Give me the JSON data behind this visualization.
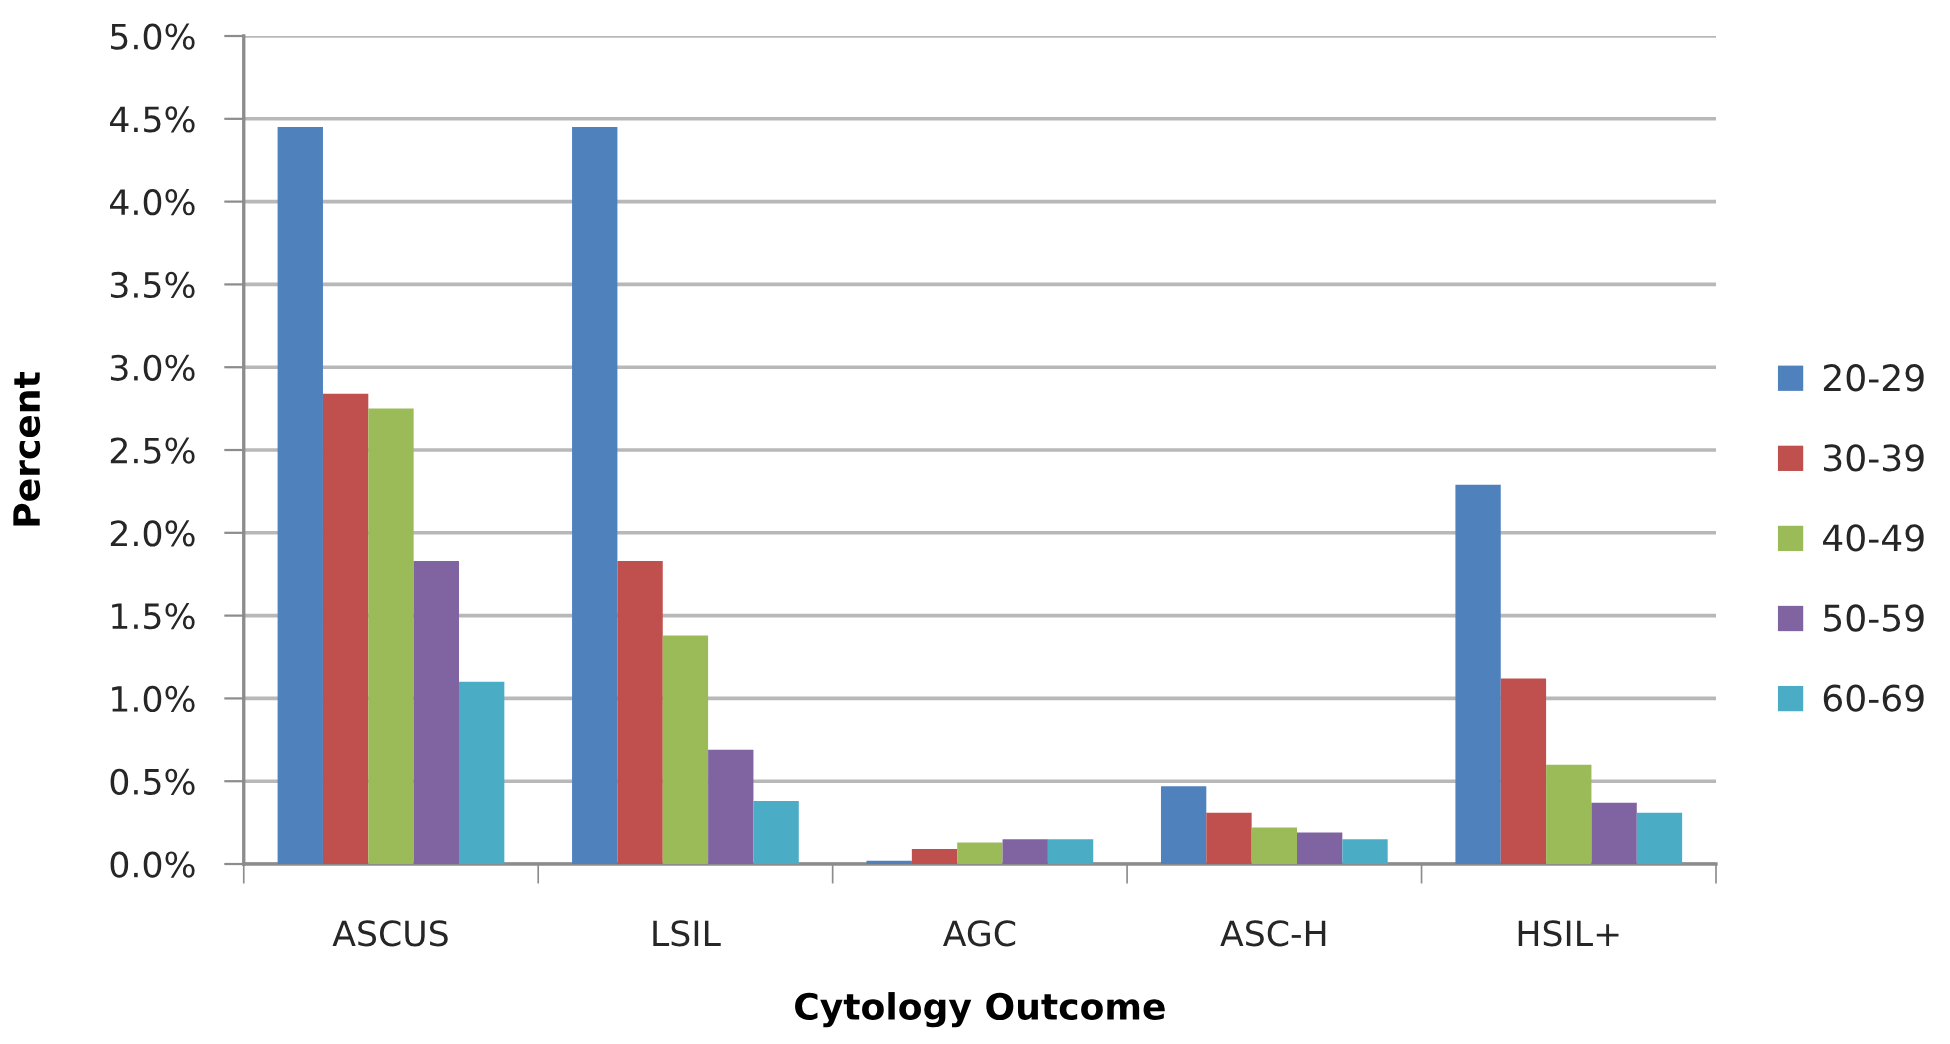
{
  "chart_data": {
    "type": "bar",
    "xlabel": "Cytology Outcome",
    "ylabel": "Percent",
    "categories": [
      "ASCUS",
      "LSIL",
      "AGC",
      "ASC-H",
      "HSIL+"
    ],
    "series": [
      {
        "name": "20-29",
        "color": "#4f81bd",
        "values": [
          4.45,
          4.45,
          0.02,
          0.47,
          2.29
        ]
      },
      {
        "name": "30-39",
        "color": "#c0504d",
        "values": [
          2.84,
          1.83,
          0.09,
          0.31,
          1.12
        ]
      },
      {
        "name": "40-49",
        "color": "#9bbb59",
        "values": [
          2.75,
          1.38,
          0.13,
          0.22,
          0.6
        ]
      },
      {
        "name": "50-59",
        "color": "#8064a2",
        "values": [
          1.83,
          0.69,
          0.15,
          0.19,
          0.37
        ]
      },
      {
        "name": "60-69",
        "color": "#4bacc6",
        "values": [
          1.1,
          0.38,
          0.15,
          0.15,
          0.31
        ]
      }
    ],
    "ylim": [
      0,
      5
    ],
    "yticks": [
      {
        "value": 0,
        "label": "0.0%"
      },
      {
        "value": 0.5,
        "label": "0.5%"
      },
      {
        "value": 1,
        "label": "1.0%"
      },
      {
        "value": 1.5,
        "label": "1.5%"
      },
      {
        "value": 2,
        "label": "2.0%"
      },
      {
        "value": 2.5,
        "label": "2.5%"
      },
      {
        "value": 3,
        "label": "3.0%"
      },
      {
        "value": 3.5,
        "label": "3.5%"
      },
      {
        "value": 4,
        "label": "4.0%"
      },
      {
        "value": 4.5,
        "label": "4.5%"
      },
      {
        "value": 5,
        "label": "5.0%"
      }
    ],
    "grid": "y",
    "legend": "right"
  }
}
